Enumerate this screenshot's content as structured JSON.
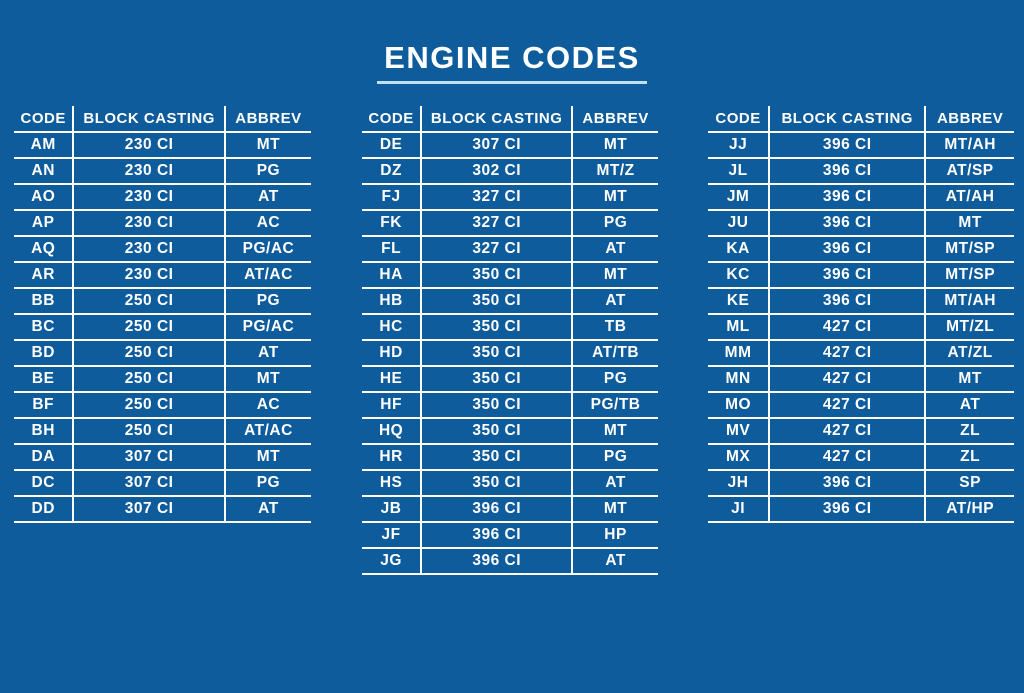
{
  "page": {
    "title": "ENGINE CODES",
    "background_color": "#0E5C9B",
    "line_color": "#FFFFFF",
    "underline_color": "#BEDFF4",
    "text_color": "#FFFFFF"
  },
  "chart_data": [
    {
      "type": "table",
      "columns": [
        "CODE",
        "BLOCK CASTING",
        "ABBREV"
      ],
      "rows": [
        [
          "AM",
          "230 CI",
          "MT"
        ],
        [
          "AN",
          "230 CI",
          "PG"
        ],
        [
          "AO",
          "230 CI",
          "AT"
        ],
        [
          "AP",
          "230 CI",
          "AC"
        ],
        [
          "AQ",
          "230 CI",
          "PG/AC"
        ],
        [
          "AR",
          "230 CI",
          "AT/AC"
        ],
        [
          "BB",
          "250 CI",
          "PG"
        ],
        [
          "BC",
          "250 CI",
          "PG/AC"
        ],
        [
          "BD",
          "250 CI",
          "AT"
        ],
        [
          "BE",
          "250 CI",
          "MT"
        ],
        [
          "BF",
          "250 CI",
          "AC"
        ],
        [
          "BH",
          "250 CI",
          "AT/AC"
        ],
        [
          "DA",
          "307 CI",
          "MT"
        ],
        [
          "DC",
          "307 CI",
          "PG"
        ],
        [
          "DD",
          "307 CI",
          "AT"
        ]
      ]
    },
    {
      "type": "table",
      "columns": [
        "CODE",
        "BLOCK CASTING",
        "ABBREV"
      ],
      "rows": [
        [
          "DE",
          "307 CI",
          "MT"
        ],
        [
          "DZ",
          "302 CI",
          "MT/Z"
        ],
        [
          "FJ",
          "327 CI",
          "MT"
        ],
        [
          "FK",
          "327 CI",
          "PG"
        ],
        [
          "FL",
          "327 CI",
          "AT"
        ],
        [
          "HA",
          "350 CI",
          "MT"
        ],
        [
          "HB",
          "350 CI",
          "AT"
        ],
        [
          "HC",
          "350 CI",
          "TB"
        ],
        [
          "HD",
          "350 CI",
          "AT/TB"
        ],
        [
          "HE",
          "350 CI",
          "PG"
        ],
        [
          "HF",
          "350 CI",
          "PG/TB"
        ],
        [
          "HQ",
          "350 CI",
          "MT"
        ],
        [
          "HR",
          "350 CI",
          "PG"
        ],
        [
          "HS",
          "350 CI",
          "AT"
        ],
        [
          "JB",
          "396 CI",
          "MT"
        ],
        [
          "JF",
          "396 CI",
          "HP"
        ],
        [
          "JG",
          "396 CI",
          "AT"
        ]
      ]
    },
    {
      "type": "table",
      "columns": [
        "CODE",
        "BLOCK CASTING",
        "ABBREV"
      ],
      "rows": [
        [
          "JJ",
          "396 CI",
          "MT/AH"
        ],
        [
          "JL",
          "396 CI",
          "AT/SP"
        ],
        [
          "JM",
          "396 CI",
          "AT/AH"
        ],
        [
          "JU",
          "396 CI",
          "MT"
        ],
        [
          "KA",
          "396 CI",
          "MT/SP"
        ],
        [
          "KC",
          "396 CI",
          "MT/SP"
        ],
        [
          "KE",
          "396 CI",
          "MT/AH"
        ],
        [
          "ML",
          "427 CI",
          "MT/ZL"
        ],
        [
          "MM",
          "427 CI",
          "AT/ZL"
        ],
        [
          "MN",
          "427 CI",
          "MT"
        ],
        [
          "MO",
          "427 CI",
          "AT"
        ],
        [
          "MV",
          "427 CI",
          "ZL"
        ],
        [
          "MX",
          "427 CI",
          "ZL"
        ],
        [
          "JH",
          "396 CI",
          "SP"
        ],
        [
          "JI",
          "396 CI",
          "AT/HP"
        ]
      ]
    }
  ]
}
